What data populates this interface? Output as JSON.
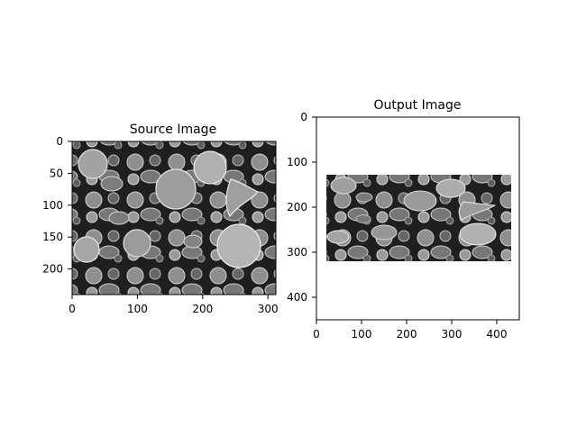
{
  "chart_data": [
    {
      "type": "image",
      "title": "Source Image",
      "image_content": "grayscale SEM micrograph of pollen grains",
      "xlim": [
        0,
        312
      ],
      "ylim": [
        240,
        0
      ],
      "xticks": [
        0,
        100,
        200,
        300
      ],
      "yticks": [
        0,
        50,
        100,
        150,
        200
      ],
      "xtick_labels": [
        "0",
        "100",
        "200",
        "300"
      ],
      "ytick_labels": [
        "0",
        "50",
        "100",
        "150",
        "200"
      ],
      "grid": false
    },
    {
      "type": "image",
      "title": "Output Image",
      "image_content": "warped (squashed) version of the source pollen image placed on a white canvas",
      "xlim": [
        0,
        450
      ],
      "ylim": [
        450,
        0
      ],
      "xticks": [
        0,
        100,
        200,
        300,
        400
      ],
      "yticks": [
        0,
        100,
        200,
        300,
        400
      ],
      "xtick_labels": [
        "0",
        "100",
        "200",
        "300",
        "400"
      ],
      "ytick_labels": [
        "0",
        "100",
        "200",
        "300",
        "400"
      ],
      "content_extent": {
        "x": [
          22,
          432
        ],
        "y": [
          128,
          320
        ]
      },
      "grid": false
    }
  ]
}
